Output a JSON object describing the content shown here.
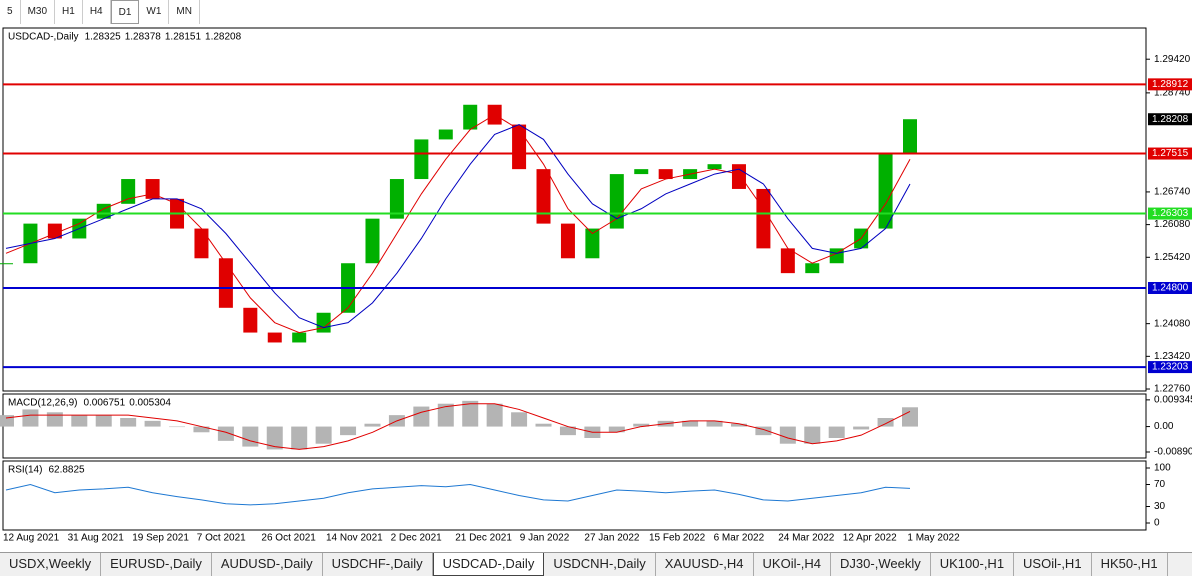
{
  "toolbar": {
    "timeframes": [
      "5",
      "M30",
      "H1",
      "H4",
      "D1",
      "W1",
      "MN"
    ]
  },
  "chart_data": [
    {
      "type": "candlestick",
      "title": "USDCAD-,Daily",
      "header_values": [
        1.28325,
        1.28378,
        1.28151,
        1.28208
      ],
      "x_labels": [
        "12 Aug 2021",
        "31 Aug 2021",
        "19 Sep 2021",
        "7 Oct 2021",
        "26 Oct 2021",
        "14 Nov 2021",
        "2 Dec 2021",
        "21 Dec 2021",
        "9 Jan 2022",
        "27 Jan 2022",
        "15 Feb 2022",
        "6 Mar 2022",
        "24 Mar 2022",
        "12 Apr 2022",
        "1 May 2022"
      ],
      "ylim": [
        1.2272,
        1.3005
      ],
      "yticks": [
        {
          "value": 1.2942,
          "label": "1.29420"
        },
        {
          "value": 1.2874,
          "label": "1.28740"
        },
        {
          "value": 1.2674,
          "label": "1.26740"
        },
        {
          "value": 1.2608,
          "label": "1.26080"
        },
        {
          "value": 1.2542,
          "label": "1.25420"
        },
        {
          "value": 1.2408,
          "label": "1.24080"
        },
        {
          "value": 1.2342,
          "label": "1.23420"
        },
        {
          "value": 1.2276,
          "label": "1.22760"
        }
      ],
      "levels": [
        {
          "value": 1.28912,
          "label": "1.28912",
          "color": "#e00000"
        },
        {
          "value": 1.27515,
          "label": "1.27515",
          "color": "#e00000"
        },
        {
          "value": 1.26303,
          "label": "1.26303",
          "color": "#22dd22"
        },
        {
          "value": 1.248,
          "label": "1.24800",
          "color": "#0000d0"
        },
        {
          "value": 1.23203,
          "label": "1.23203",
          "color": "#0000d0"
        }
      ],
      "price_label": {
        "value": 1.28208,
        "label": "1.28208"
      },
      "up_color": "#00b000",
      "down_color": "#e00000",
      "series": [
        {
          "color": "#00b000",
          "values": [
            1.253,
            1.261,
            1.258,
            1.262,
            1.265,
            1.27,
            1.266,
            1.26,
            1.254,
            1.244,
            1.239,
            1.237,
            1.239,
            1.243,
            1.253,
            1.262,
            1.27,
            1.278,
            1.28,
            1.285,
            1.281,
            1.272,
            1.261,
            1.254,
            1.26,
            1.271,
            1.272,
            1.27,
            1.272,
            1.273,
            1.268,
            1.256,
            1.251,
            1.253,
            1.256,
            1.26,
            1.275,
            1.28208
          ]
        },
        {
          "color": "#e00000",
          "values": [
            1.255,
            1.257,
            1.259,
            1.261,
            1.264,
            1.266,
            1.267,
            1.265,
            1.26,
            1.253,
            1.246,
            1.241,
            1.239,
            1.24,
            1.244,
            1.251,
            1.259,
            1.267,
            1.274,
            1.28,
            1.283,
            1.28,
            1.273,
            1.264,
            1.259,
            1.262,
            1.268,
            1.27,
            1.271,
            1.272,
            1.271,
            1.264,
            1.256,
            1.253,
            1.255,
            1.258,
            1.265,
            1.274
          ]
        },
        {
          "color": "#0000c0",
          "values": [
            1.256,
            1.257,
            1.258,
            1.26,
            1.262,
            1.264,
            1.266,
            1.266,
            1.264,
            1.259,
            1.253,
            1.247,
            1.242,
            1.24,
            1.241,
            1.245,
            1.251,
            1.258,
            1.266,
            1.273,
            1.279,
            1.281,
            1.278,
            1.271,
            1.265,
            1.262,
            1.264,
            1.267,
            1.269,
            1.271,
            1.272,
            1.269,
            1.262,
            1.256,
            1.255,
            1.256,
            1.26,
            1.269
          ]
        }
      ]
    },
    {
      "type": "macd",
      "title": "MACD(12,26,9)",
      "header_values": [
        0.006751,
        0.005304
      ],
      "ylim": [
        -0.011,
        0.0114
      ],
      "yticks": [
        0.009345,
        {
          "value": 0,
          "label": "0.00"
        },
        -0.008902
      ],
      "series": [
        {
          "color": "#b4b4b4",
          "values": [
            0.004,
            0.006,
            0.005,
            0.004,
            0.004,
            0.003,
            0.002,
            0.0,
            -0.002,
            -0.005,
            -0.007,
            -0.008,
            -0.008,
            -0.006,
            -0.003,
            0.001,
            0.004,
            0.007,
            0.008,
            0.009,
            0.008,
            0.005,
            0.001,
            -0.003,
            -0.004,
            -0.002,
            0.001,
            0.002,
            0.002,
            0.002,
            0.001,
            -0.003,
            -0.006,
            -0.006,
            -0.004,
            -0.001,
            0.003,
            0.006751
          ]
        },
        {
          "color": "#e00000",
          "values": [
            0.003,
            0.004,
            0.004,
            0.004,
            0.004,
            0.004,
            0.003,
            0.002,
            0.0,
            -0.002,
            -0.005,
            -0.007,
            -0.008,
            -0.007,
            -0.005,
            -0.002,
            0.002,
            0.005,
            0.007,
            0.008,
            0.008,
            0.006,
            0.003,
            0.0,
            -0.002,
            -0.002,
            0.0,
            0.001,
            0.002,
            0.002,
            0.001,
            -0.001,
            -0.004,
            -0.006,
            -0.005,
            -0.003,
            0.001,
            0.005304
          ]
        }
      ]
    },
    {
      "type": "line",
      "title": "RSI(14)",
      "header_values": [
        62.8825
      ],
      "ylim": [
        -12.7,
        112.7
      ],
      "yticks": [
        100,
        70,
        30,
        0
      ],
      "series": [
        {
          "color": "#1e78d2",
          "values": [
            60,
            70,
            55,
            60,
            62,
            65,
            55,
            48,
            42,
            35,
            33,
            35,
            40,
            45,
            55,
            62,
            65,
            68,
            66,
            70,
            60,
            50,
            42,
            40,
            50,
            60,
            58,
            55,
            58,
            60,
            52,
            42,
            40,
            45,
            50,
            55,
            65,
            62.8825
          ]
        }
      ]
    }
  ],
  "tabs": [
    "USDX,Weekly",
    "EURUSD-,Daily",
    "AUDUSD-,Daily",
    "USDCHF-,Daily",
    "USDCAD-,Daily",
    "USDCNH-,Daily",
    "XAUUSD-,H4",
    "UKOil-,H4",
    "DJ30-,Weekly",
    "UK100-,H1",
    "USOil-,H1",
    "HK50-,H1"
  ]
}
